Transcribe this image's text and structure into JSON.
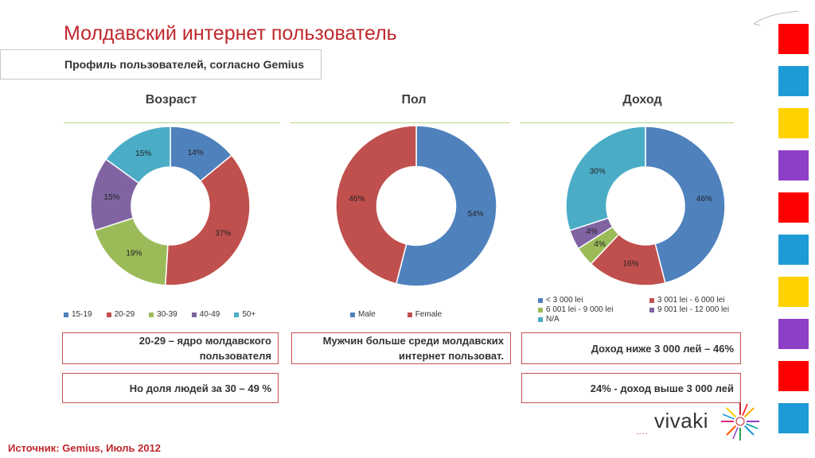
{
  "page": {
    "title": "Молдавский интернет пользователь",
    "subtitle": "Профиль пользователей, согласно Gemius",
    "source": "Источник: Gemius, Июль 2012",
    "logo_text": "vivaki",
    "logo_dots": "....",
    "square_colors": [
      "#ff0000",
      "#1e9ad6",
      "#ffd200",
      "#8e3fc7",
      "#ff0000",
      "#1e9ad6",
      "#ffd200",
      "#8e3fc7",
      "#ff0000",
      "#1e9ad6"
    ]
  },
  "chart_data": [
    {
      "type": "pie",
      "title": "Возраст",
      "categories": [
        "15-19",
        "20-29",
        "30-39",
        "40-49",
        "50+"
      ],
      "values": [
        14,
        37,
        19,
        15,
        15
      ],
      "labels": [
        "14%",
        "37%",
        "19%",
        "15%",
        "15%"
      ],
      "colors": [
        "#4f81bd",
        "#c0504d",
        "#9bbb59",
        "#8064a2",
        "#4bacc6"
      ],
      "legend": "bottom"
    },
    {
      "type": "pie",
      "title": "Пол",
      "categories": [
        "Male",
        "Female"
      ],
      "values": [
        54,
        46
      ],
      "labels": [
        "54%",
        "46%"
      ],
      "colors": [
        "#4f81bd",
        "#c0504d"
      ],
      "legend": "bottom"
    },
    {
      "type": "pie",
      "title": "Доход",
      "categories": [
        "< 3 000 lei",
        "3 001 lei - 6 000 lei",
        "6 001 lei - 9 000 lei",
        "9 001 lei - 12 000 lei",
        "N/A"
      ],
      "values": [
        46,
        16,
        4,
        4,
        30
      ],
      "labels": [
        "46%",
        "16%",
        "4%",
        "4%",
        "30%"
      ],
      "colors": [
        "#4f81bd",
        "#c0504d",
        "#9bbb59",
        "#8064a2",
        "#4bacc6"
      ],
      "legend": "bottom"
    }
  ],
  "notes": {
    "age_core": "20-29 – ядро молдавского пользователя",
    "age_share": "Но доля людей за 30 – 49 %",
    "gender": "Мужчин больше среди молдавских интернет пользоват.",
    "income_low": "Доход ниже 3 000 лей – 46%",
    "income_high": "24% - доход выше 3 000 лей"
  }
}
